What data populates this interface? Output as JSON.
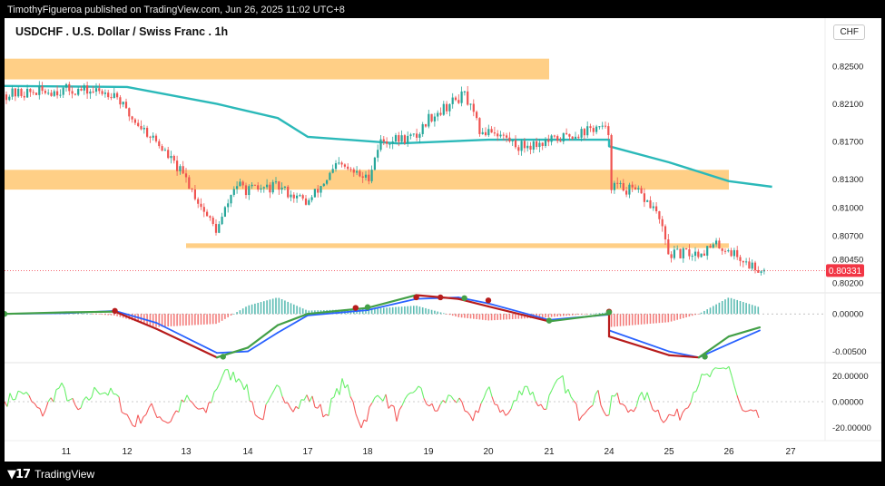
{
  "header": {
    "publish_info": "TimothyFigueroa published on TradingView.com, Jun 26, 2025 11:02 UTC+8",
    "currency": "CHF"
  },
  "footer": {
    "brand": "TradingView"
  },
  "colors": {
    "bull": "#26a69a",
    "bear": "#ef5350",
    "zone": "#ffcc80",
    "ma": "#2bb9b9",
    "macd_blue": "#2962ff",
    "macd_red": "#b71c1c",
    "macd_green": "#43a047",
    "osc_green": "#69f06a",
    "osc_red": "#f45b5b",
    "last_price": "#f23645"
  },
  "chart_data": [
    {
      "type": "candlestick",
      "title": "USDCHF . U.S. Dollar / Swiss Franc . 1h",
      "y_ticks": [
        0.825,
        0.821,
        0.817,
        0.813,
        0.81,
        0.807,
        0.8045,
        0.802
      ],
      "y_tick_labels": [
        "0.82500",
        "0.82100",
        "0.81700",
        "0.81300",
        "0.81000",
        "0.80700",
        "0.80450",
        "0.80200"
      ],
      "ylim": [
        0.8198,
        0.8268
      ],
      "x_labels": [
        "11",
        "12",
        "13",
        "14",
        "17",
        "18",
        "19",
        "20",
        "21",
        "24",
        "25",
        "26",
        "27"
      ],
      "last_price": 0.80331,
      "last_price_label": "0.80331",
      "zones": [
        {
          "x_start": "10",
          "x_end": "21",
          "y_low": 0.8236,
          "y_high": 0.8258
        },
        {
          "x_start": "10",
          "x_end": "26",
          "y_low": 0.8119,
          "y_high": 0.814
        },
        {
          "x_start": "13",
          "x_end": "26",
          "y_low": 0.8057,
          "y_high": 0.8062
        }
      ],
      "key_prices": [
        {
          "day": "10",
          "price": 0.822
        },
        {
          "day": "11",
          "price": 0.8225
        },
        {
          "day": "11.8",
          "price": 0.8222
        },
        {
          "day": "12",
          "price": 0.82
        },
        {
          "day": "12.5",
          "price": 0.817
        },
        {
          "day": "13",
          "price": 0.813
        },
        {
          "day": "13.3",
          "price": 0.8095
        },
        {
          "day": "13.5",
          "price": 0.8075
        },
        {
          "day": "13.8",
          "price": 0.8125
        },
        {
          "day": "14",
          "price": 0.8118
        },
        {
          "day": "14.5",
          "price": 0.8122
        },
        {
          "day": "17",
          "price": 0.8105
        },
        {
          "day": "17.5",
          "price": 0.8145
        },
        {
          "day": "18",
          "price": 0.813
        },
        {
          "day": "18.2",
          "price": 0.817
        },
        {
          "day": "18.8",
          "price": 0.8175
        },
        {
          "day": "19",
          "price": 0.8195
        },
        {
          "day": "19.6",
          "price": 0.822
        },
        {
          "day": "19.9",
          "price": 0.8175
        },
        {
          "day": "20",
          "price": 0.8185
        },
        {
          "day": "20.5",
          "price": 0.8165
        },
        {
          "day": "21",
          "price": 0.817
        },
        {
          "day": "21.8",
          "price": 0.8185
        },
        {
          "day": "22",
          "price": 0.818
        },
        {
          "day": "22.2",
          "price": 0.8165
        },
        {
          "day": "24",
          "price": 0.8125
        },
        {
          "day": "24.5",
          "price": 0.8115
        },
        {
          "day": "24.8",
          "price": 0.8095
        },
        {
          "day": "25",
          "price": 0.805
        },
        {
          "day": "25.5",
          "price": 0.8052
        },
        {
          "day": "25.8",
          "price": 0.806
        },
        {
          "day": "26",
          "price": 0.8055
        },
        {
          "day": "26.3",
          "price": 0.804
        },
        {
          "day": "26.6",
          "price": 0.8033
        }
      ],
      "moving_average": [
        {
          "day": "10",
          "price": 0.8229
        },
        {
          "day": "12",
          "price": 0.8228
        },
        {
          "day": "13.5",
          "price": 0.821
        },
        {
          "day": "14.5",
          "price": 0.8195
        },
        {
          "day": "17",
          "price": 0.8175
        },
        {
          "day": "18.5",
          "price": 0.8168
        },
        {
          "day": "20",
          "price": 0.8172
        },
        {
          "day": "21",
          "price": 0.8172
        },
        {
          "day": "22.5",
          "price": 0.8172
        },
        {
          "day": "24",
          "price": 0.8165
        },
        {
          "day": "25",
          "price": 0.8148
        },
        {
          "day": "26",
          "price": 0.8128
        },
        {
          "day": "26.7",
          "price": 0.8122
        }
      ]
    },
    {
      "type": "line",
      "y_ticks": [
        0.0,
        -0.005
      ],
      "y_tick_labels": [
        "0.00000",
        "-0.00500"
      ],
      "ylim": [
        -0.0065,
        0.0028
      ],
      "series": [
        {
          "values": [
            {
              "day": "10",
              "v": 0.0
            },
            {
              "day": "11",
              "v": 0.0002
            },
            {
              "day": "11.8",
              "v": 0.0003
            },
            {
              "day": "12.5",
              "v": -0.002
            },
            {
              "day": "13.5",
              "v": -0.0058
            },
            {
              "day": "14",
              "v": -0.0045
            },
            {
              "day": "14.5",
              "v": -0.0015
            },
            {
              "day": "17",
              "v": 0.0
            },
            {
              "day": "18",
              "v": 0.0008
            },
            {
              "day": "18.8",
              "v": 0.0025
            },
            {
              "day": "19.5",
              "v": 0.002
            },
            {
              "day": "20",
              "v": 0.001
            },
            {
              "day": "21",
              "v": -0.001
            },
            {
              "day": "22",
              "v": 0.0
            },
            {
              "day": "23",
              "v": 0.0005
            },
            {
              "day": "24",
              "v": -0.003
            },
            {
              "day": "25",
              "v": -0.0055
            },
            {
              "day": "25.5",
              "v": -0.0058
            },
            {
              "day": "26",
              "v": -0.003
            },
            {
              "day": "26.5",
              "v": -0.0018
            }
          ]
        },
        {
          "values": [
            {
              "day": "10",
              "v": 0.0
            },
            {
              "day": "11",
              "v": 0.0001
            },
            {
              "day": "11.8",
              "v": 0.0004
            },
            {
              "day": "12.5",
              "v": -0.0012
            },
            {
              "day": "13.5",
              "v": -0.0052
            },
            {
              "day": "14",
              "v": -0.005
            },
            {
              "day": "14.5",
              "v": -0.0025
            },
            {
              "day": "17",
              "v": -0.0002
            },
            {
              "day": "18",
              "v": 0.0005
            },
            {
              "day": "18.8",
              "v": 0.002
            },
            {
              "day": "19.5",
              "v": 0.0022
            },
            {
              "day": "20",
              "v": 0.0014
            },
            {
              "day": "21",
              "v": -0.0008
            },
            {
              "day": "22",
              "v": -0.0001
            },
            {
              "day": "23",
              "v": 0.0005
            },
            {
              "day": "24",
              "v": -0.0022
            },
            {
              "day": "25",
              "v": -0.005
            },
            {
              "day": "25.5",
              "v": -0.0058
            },
            {
              "day": "26",
              "v": -0.004
            },
            {
              "day": "26.5",
              "v": -0.0022
            }
          ]
        }
      ],
      "cross_markers": [
        {
          "day": "10",
          "v": 0.0,
          "kind": "bull"
        },
        {
          "day": "11.8",
          "v": 0.0004,
          "kind": "bear"
        },
        {
          "day": "13.6",
          "v": -0.0057,
          "kind": "bull"
        },
        {
          "day": "17.8",
          "v": 0.0008,
          "kind": "bear"
        },
        {
          "day": "18",
          "v": 0.0009,
          "kind": "bull"
        },
        {
          "day": "18.8",
          "v": 0.0022,
          "kind": "bear"
        },
        {
          "day": "19.2",
          "v": 0.0022,
          "kind": "bear"
        },
        {
          "day": "19.6",
          "v": 0.0021,
          "kind": "bull"
        },
        {
          "day": "20",
          "v": 0.0018,
          "kind": "bear"
        },
        {
          "day": "21",
          "v": -0.0009,
          "kind": "bull"
        },
        {
          "day": "23.9",
          "v": 0.0003,
          "kind": "bear"
        },
        {
          "day": "24",
          "v": 0.0002,
          "kind": "bull"
        },
        {
          "day": "25.6",
          "v": -0.0057,
          "kind": "bull"
        }
      ]
    },
    {
      "type": "line",
      "y_ticks": [
        20,
        0,
        -20
      ],
      "y_tick_labels": [
        "20.00000",
        "0.00000",
        "-20.00000"
      ],
      "ylim": [
        -30,
        30
      ],
      "values": [
        {
          "day": "10",
          "v": 0
        },
        {
          "day": "10.3",
          "v": 8
        },
        {
          "day": "10.6",
          "v": -10
        },
        {
          "day": "10.9",
          "v": 12
        },
        {
          "day": "11.2",
          "v": -8
        },
        {
          "day": "11.5",
          "v": 10
        },
        {
          "day": "11.8",
          "v": 5
        },
        {
          "day": "12.1",
          "v": -18
        },
        {
          "day": "12.4",
          "v": -5
        },
        {
          "day": "12.7",
          "v": -16
        },
        {
          "day": "13",
          "v": 2
        },
        {
          "day": "13.3",
          "v": -10
        },
        {
          "day": "13.6",
          "v": 22
        },
        {
          "day": "13.9",
          "v": 18
        },
        {
          "day": "14.2",
          "v": -15
        },
        {
          "day": "14.5",
          "v": 10
        },
        {
          "day": "14.8",
          "v": -5
        },
        {
          "day": "17",
          "v": 4
        },
        {
          "day": "17.3",
          "v": -10
        },
        {
          "day": "17.6",
          "v": 16
        },
        {
          "day": "17.9",
          "v": -18
        },
        {
          "day": "18.2",
          "v": 8
        },
        {
          "day": "18.5",
          "v": -12
        },
        {
          "day": "18.8",
          "v": 12
        },
        {
          "day": "19.1",
          "v": -8
        },
        {
          "day": "19.4",
          "v": 6
        },
        {
          "day": "19.7",
          "v": -15
        },
        {
          "day": "20",
          "v": 8
        },
        {
          "day": "20.3",
          "v": -12
        },
        {
          "day": "20.6",
          "v": 14
        },
        {
          "day": "20.9",
          "v": -6
        },
        {
          "day": "21.2",
          "v": 18
        },
        {
          "day": "21.5",
          "v": -10
        },
        {
          "day": "21.8",
          "v": 6
        },
        {
          "day": "22.1",
          "v": -12
        },
        {
          "day": "24",
          "v": 10
        },
        {
          "day": "24.3",
          "v": -8
        },
        {
          "day": "24.6",
          "v": 5
        },
        {
          "day": "24.9",
          "v": -12
        },
        {
          "day": "25.2",
          "v": -10
        },
        {
          "day": "25.5",
          "v": 16
        },
        {
          "day": "25.8",
          "v": 22
        },
        {
          "day": "26",
          "v": 28
        },
        {
          "day": "26.2",
          "v": -8
        },
        {
          "day": "26.5",
          "v": -12
        }
      ]
    }
  ]
}
